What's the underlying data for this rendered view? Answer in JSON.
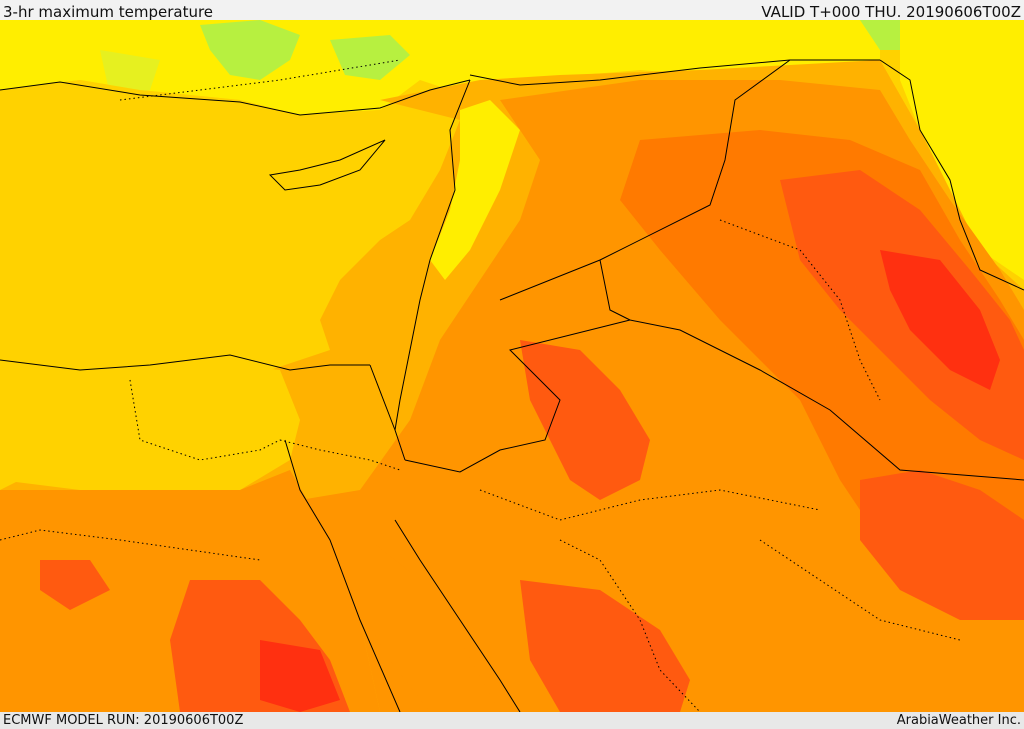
{
  "header": {
    "title": "3-hr maximum temperature",
    "valid": "VALID T+000 THU. 20190606T00Z"
  },
  "footer": {
    "model_run": "ECMWF MODEL RUN: 20190606T00Z",
    "credit": "ArabiaWeather Inc."
  },
  "map": {
    "variable": "3-hr maximum temperature",
    "palette": {
      "lightgreen": "#b7f040",
      "yellowgreen": "#e6f020",
      "yellow": "#ffee00",
      "gold": "#ffd200",
      "amber": "#ffb200",
      "orange": "#ff9500",
      "darkorange": "#ff7a00",
      "redorange": "#ff5a10",
      "red": "#ff3010"
    },
    "borders_color": "#000000"
  }
}
